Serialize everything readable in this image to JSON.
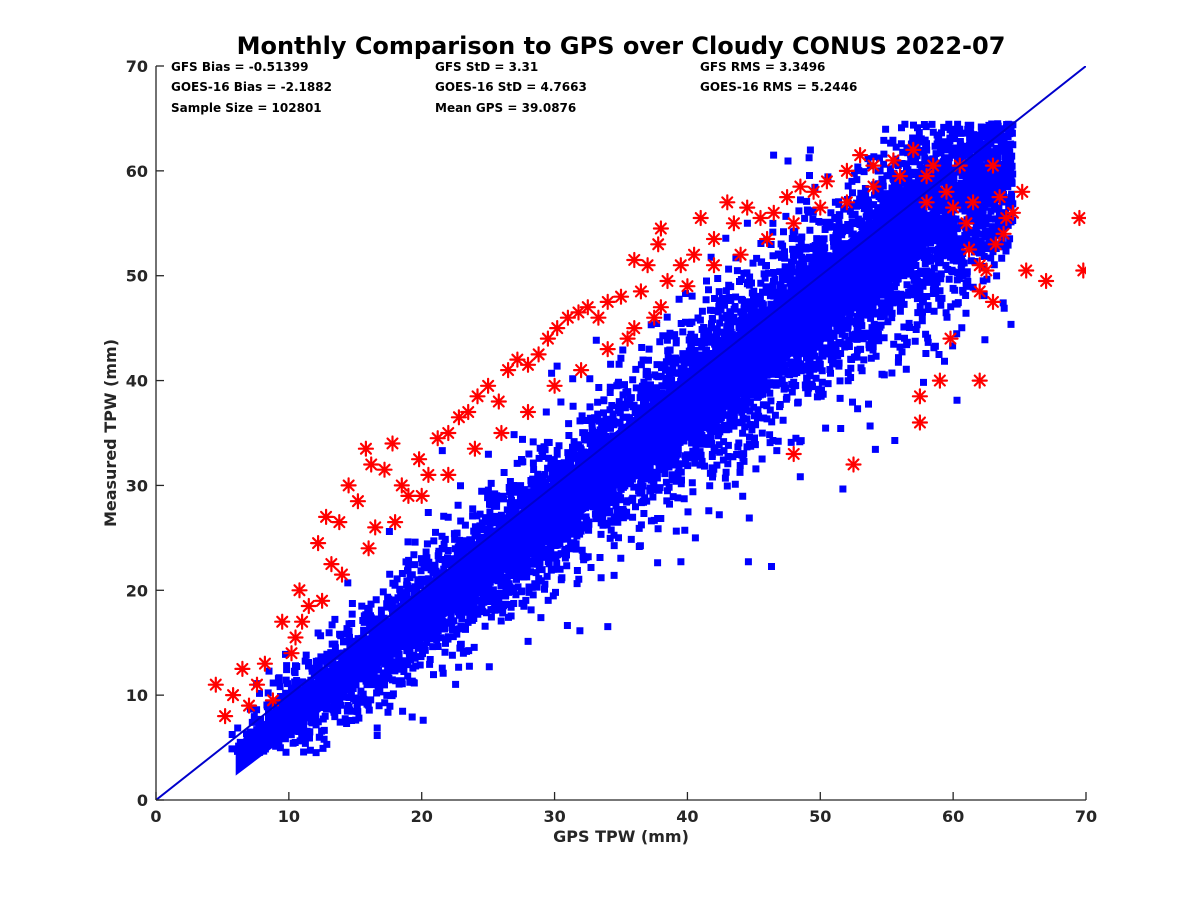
{
  "chart_data": {
    "type": "scatter",
    "title": "Monthly Comparison to GPS over Cloudy CONUS 2022-07",
    "xlabel": "GPS TPW (mm)",
    "ylabel": "Measured TPW (mm)",
    "xlim": [
      0,
      70
    ],
    "ylim": [
      0,
      70
    ],
    "xticks": [
      "0",
      "10",
      "20",
      "30",
      "40",
      "50",
      "60",
      "70"
    ],
    "yticks": [
      "0",
      "10",
      "20",
      "30",
      "40",
      "50",
      "60",
      "70"
    ],
    "grid": false,
    "statistics": [
      [
        "GFS Bias = -0.51399",
        "GFS StD = 3.31",
        "GFS RMS = 3.3496"
      ],
      [
        "GOES-16 Bias = -2.1882",
        "GOES-16 StD = 4.7663",
        "GOES-16 RMS = 5.2446"
      ],
      [
        "Sample Size = 102801",
        "Mean GPS = 39.0876"
      ]
    ],
    "reference_line": {
      "x": [
        0,
        70
      ],
      "y": [
        0,
        70
      ],
      "color": "#0000cc"
    },
    "series": [
      {
        "marker": "asterisk",
        "color": "#ff0000",
        "x": [
          4.5,
          5.2,
          5.8,
          6.5,
          7.0,
          7.6,
          8.2,
          8.8,
          9.5,
          10.2,
          10.8,
          11.5,
          12.2,
          12.8,
          13.2,
          13.8,
          14.5,
          15.2,
          15.8,
          16.2,
          16.5,
          17.2,
          17.8,
          18.5,
          19.0,
          19.8,
          20.5,
          21.2,
          22.0,
          22.8,
          23.5,
          24.2,
          25.0,
          25.8,
          26.5,
          27.2,
          28.0,
          28.8,
          29.5,
          30.2,
          31.0,
          31.8,
          32.5,
          33.3,
          34.0,
          35.0,
          36.0,
          36.5,
          37.0,
          37.8,
          38.0,
          38.5,
          39.5,
          40.5,
          41.0,
          42.0,
          43.0,
          43.5,
          44.5,
          45.5,
          46.5,
          47.5,
          48.5,
          49.5,
          50.5,
          52.0,
          53.0,
          54.0,
          55.5,
          57.0,
          57.5,
          58.0,
          58.5,
          59.0,
          59.5,
          60.0,
          60.5,
          61.0,
          61.5,
          62.0,
          62.0,
          62.5,
          63.0,
          63.0,
          63.5,
          64.0,
          64.5,
          65.2,
          65.5,
          67.0,
          69.5,
          69.8,
          10.5,
          11.0,
          12.5,
          14.0,
          16.0,
          18.0,
          20.0,
          22.0,
          24.0,
          26.0,
          28.0,
          30.0,
          32.0,
          34.0,
          36.0,
          38.0,
          40.0,
          42.0,
          44.0,
          46.0,
          48.0,
          50.0,
          52.0,
          54.0,
          56.0,
          58.0,
          35.5,
          37.5,
          48.0,
          52.5,
          57.5,
          59.8,
          62.0,
          63.2,
          63.8,
          61.2
        ],
        "y": [
          11.0,
          8.0,
          10.0,
          12.5,
          9.0,
          11.0,
          13.0,
          9.5,
          17.0,
          14.0,
          20.0,
          18.5,
          24.5,
          27.0,
          22.5,
          26.5,
          30.0,
          28.5,
          33.5,
          32.0,
          26.0,
          31.5,
          34.0,
          30.0,
          29.0,
          32.5,
          31.0,
          34.5,
          35.0,
          36.5,
          37.0,
          38.5,
          39.5,
          38.0,
          41.0,
          42.0,
          41.5,
          42.5,
          44.0,
          45.0,
          46.0,
          46.5,
          47.0,
          46.0,
          47.5,
          48.0,
          51.5,
          48.5,
          51.0,
          53.0,
          54.5,
          49.5,
          51.0,
          52.0,
          55.5,
          53.5,
          57.0,
          55.0,
          56.5,
          55.5,
          56.0,
          57.5,
          58.5,
          58.0,
          59.0,
          60.0,
          61.5,
          60.5,
          61.0,
          62.0,
          38.5,
          59.5,
          60.5,
          40.0,
          58.0,
          56.5,
          60.5,
          55.0,
          57.0,
          40.0,
          48.5,
          50.5,
          47.5,
          60.5,
          57.5,
          55.5,
          56.0,
          58.0,
          50.5,
          49.5,
          55.5,
          50.5,
          15.5,
          17.0,
          19.0,
          21.5,
          24.0,
          26.5,
          29.0,
          31.0,
          33.5,
          35.0,
          37.0,
          39.5,
          41.0,
          43.0,
          45.0,
          47.0,
          49.0,
          51.0,
          52.0,
          53.5,
          55.0,
          56.5,
          57.0,
          58.5,
          59.5,
          57.0,
          44.0,
          46.0,
          33.0,
          32.0,
          36.0,
          44.0,
          51.0,
          53.0,
          54.0,
          52.5
        ]
      },
      {
        "marker": "square",
        "color": "#0000ff"
      }
    ]
  }
}
